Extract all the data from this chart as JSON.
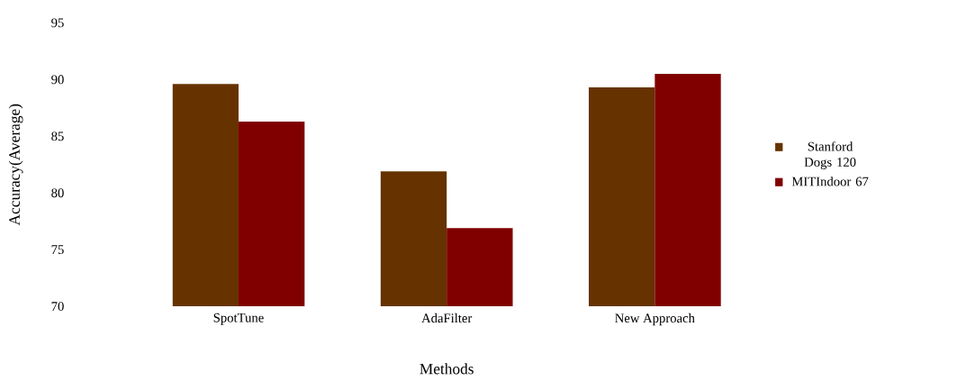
{
  "chart_data": {
    "type": "bar",
    "xlabel": "Methods",
    "ylabel": "Accuracy(Average)",
    "categories": [
      "SpotTune",
      "AdaFilter",
      "New Approach"
    ],
    "series": [
      {
        "name": "Stanford Dogs 120",
        "color": "#663300",
        "values": [
          89.6,
          81.9,
          89.3
        ]
      },
      {
        "name": "MITIndoor 67",
        "color": "#800000",
        "values": [
          86.3,
          76.9,
          90.5
        ]
      }
    ],
    "ylim": [
      70,
      95
    ],
    "yticks": [
      70,
      75,
      80,
      85,
      90,
      95
    ],
    "grid": false,
    "legend": "right"
  }
}
